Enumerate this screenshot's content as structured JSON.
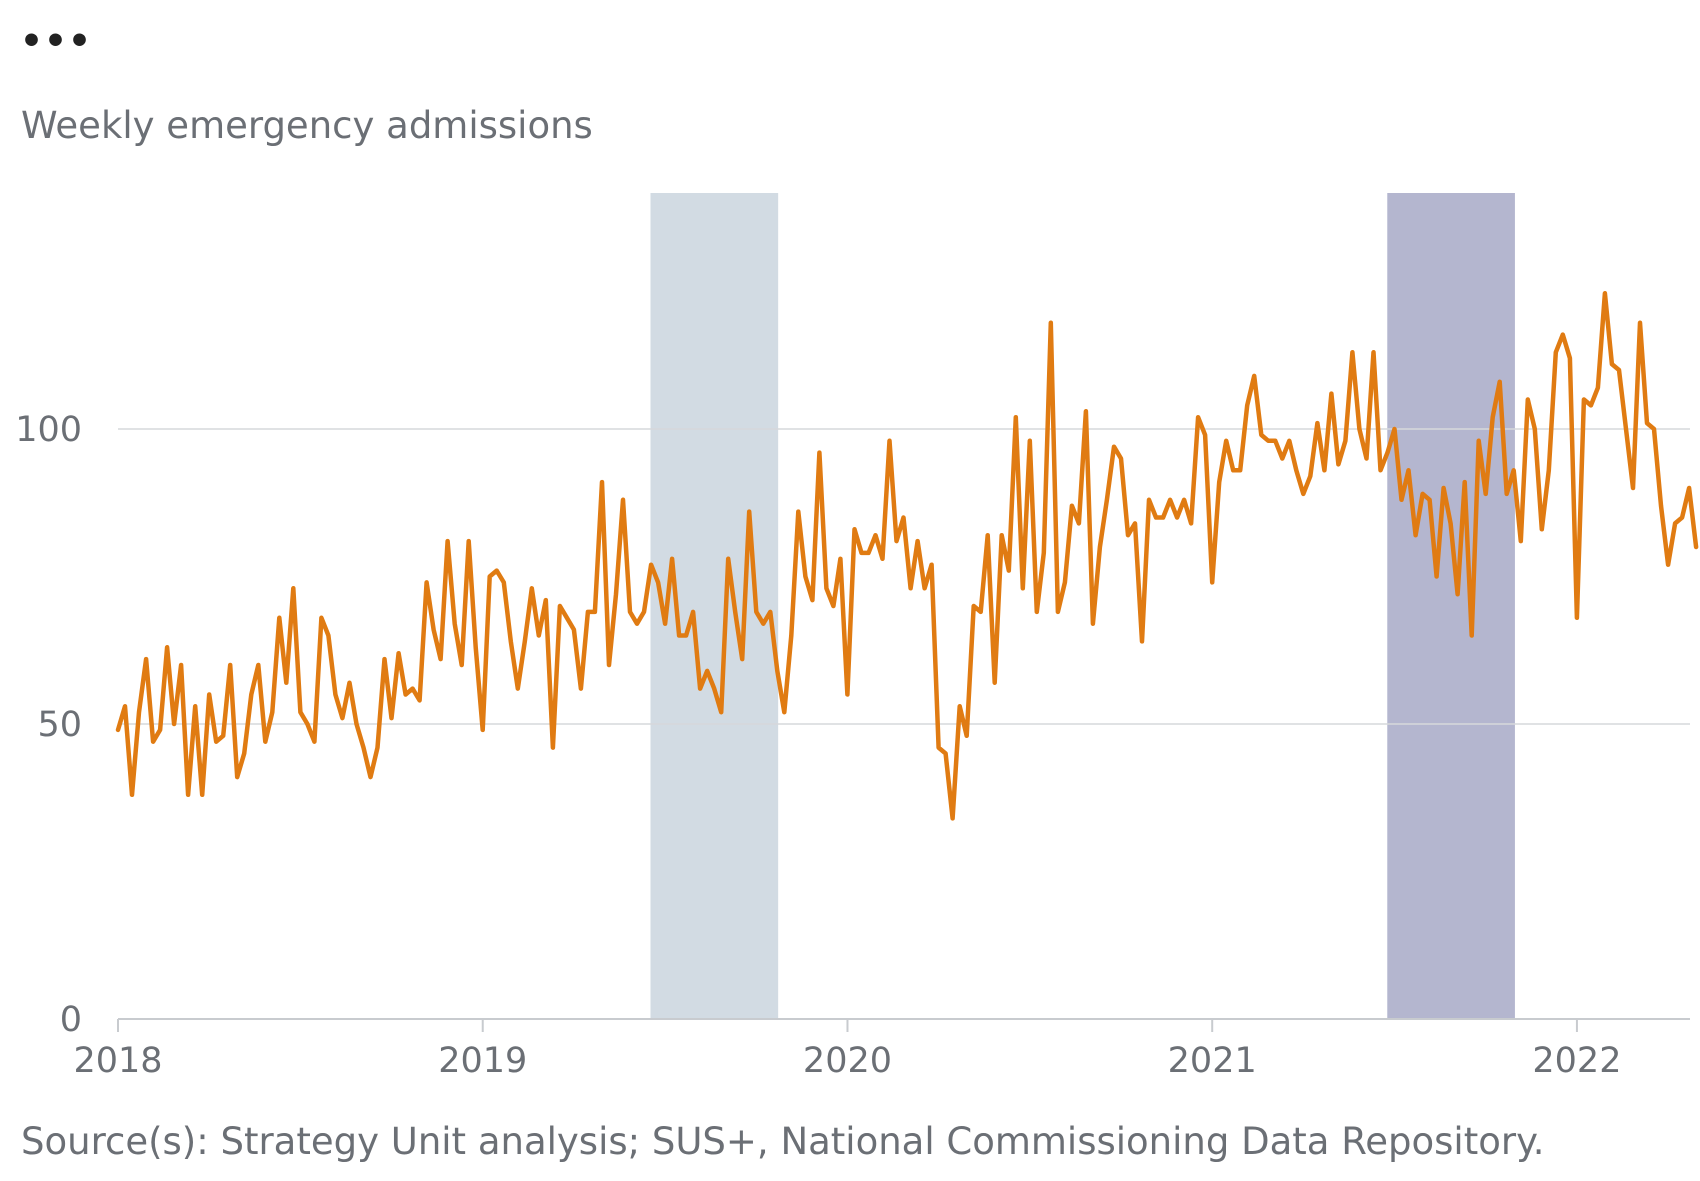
{
  "menu": {
    "label": "•••",
    "icon": "more-icon"
  },
  "source": "Source(s): Strategy Unit analysis; SUS+, National Commissioning Data Repository.",
  "colors": {
    "line": "#e07b12",
    "band1": "#d2dbe3",
    "band2": "#b4b6cf",
    "grid": "#d6d8db",
    "axis": "#c8cbcf"
  },
  "chart_data": {
    "type": "line",
    "ylabel": "Weekly emergency admissions",
    "ylim": [
      0,
      140
    ],
    "yticks": [
      {
        "value": 0,
        "label": "0"
      },
      {
        "value": 50,
        "label": "50"
      },
      {
        "value": 100,
        "label": "100"
      }
    ],
    "xlim": [
      2018.0,
      2022.31
    ],
    "xticks": [
      {
        "value": 2018,
        "label": "2018"
      },
      {
        "value": 2019,
        "label": "2019"
      },
      {
        "value": 2020,
        "label": "2020"
      },
      {
        "value": 2021,
        "label": "2021"
      },
      {
        "value": 2022,
        "label": "2022"
      }
    ],
    "bands": [
      {
        "start": 2019.46,
        "end": 2019.81
      },
      {
        "start": 2021.48,
        "end": 2021.83
      }
    ],
    "series": [
      {
        "x_start": 2018.0,
        "x_step": 0.01923,
        "values": [
          49,
          53,
          38,
          52,
          61,
          47,
          49,
          63,
          50,
          60,
          38,
          53,
          38,
          55,
          47,
          48,
          60,
          41,
          45,
          55,
          60,
          47,
          52,
          68,
          57,
          73,
          52,
          50,
          47,
          68,
          65,
          55,
          51,
          57,
          50,
          46,
          41,
          46,
          61,
          51,
          62,
          55,
          56,
          54,
          74,
          66,
          61,
          81,
          67,
          60,
          81,
          63,
          49,
          75,
          76,
          74,
          64,
          56,
          64,
          73,
          65,
          71,
          46,
          70,
          68,
          66,
          56,
          69,
          69,
          91,
          60,
          72,
          88,
          69,
          67,
          69,
          77,
          74,
          67,
          78,
          65,
          65,
          69,
          56,
          59,
          56,
          52,
          78,
          69,
          61,
          86,
          69,
          67,
          69,
          59,
          52,
          65,
          86,
          75,
          71,
          96,
          73,
          70,
          78,
          55,
          83,
          79,
          79,
          82,
          78,
          98,
          81,
          85,
          73,
          81,
          73,
          77,
          46,
          45,
          34,
          53,
          48,
          70,
          69,
          82,
          57,
          82,
          76,
          102,
          73,
          98,
          69,
          79,
          118,
          69,
          74,
          87,
          84,
          103,
          67,
          80,
          88,
          97,
          95,
          82,
          84,
          64,
          88,
          85,
          85,
          88,
          85,
          88,
          84,
          102,
          99,
          74,
          91,
          98,
          93,
          93,
          104,
          109,
          99,
          98,
          98,
          95,
          98,
          93,
          89,
          92,
          101,
          93,
          106,
          94,
          98,
          113,
          100,
          95,
          113,
          93,
          96,
          100,
          88,
          93,
          82,
          89,
          88,
          75,
          90,
          84,
          72,
          91,
          65,
          98,
          89,
          102,
          108,
          89,
          93,
          81,
          105,
          100,
          83,
          93,
          113,
          116,
          112,
          68,
          105,
          104,
          107,
          123,
          111,
          110,
          100,
          90,
          118,
          101,
          100,
          87,
          77,
          84,
          85,
          90,
          80
        ]
      }
    ]
  }
}
